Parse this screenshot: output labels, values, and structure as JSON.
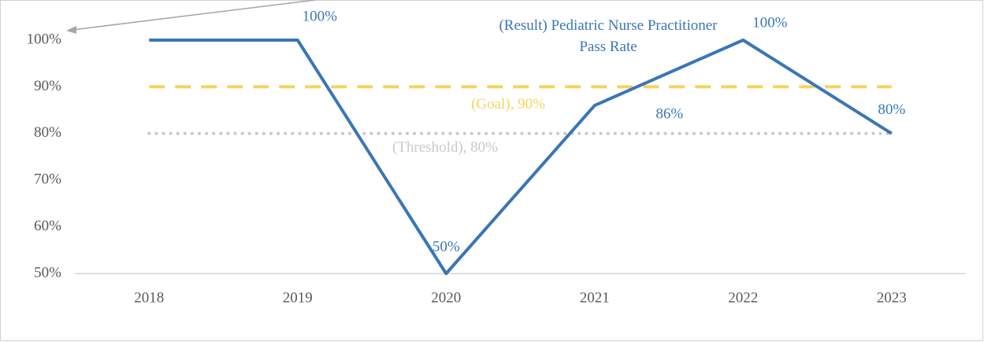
{
  "chart_data": {
    "type": "line",
    "categories": [
      "2018",
      "2019",
      "2020",
      "2021",
      "2022",
      "2023"
    ],
    "series": [
      {
        "label": "(Result) Pediatric Nurse Practitioner Pass Rate",
        "color": "#3a76b6",
        "style": "solid",
        "values": [
          100,
          100,
          50,
          86,
          100,
          80
        ],
        "value_labels": [
          null,
          "100%",
          "50%",
          "86%",
          "100%",
          "80%"
        ]
      },
      {
        "label": "(Goal), 90%",
        "color": "#f5d45e",
        "style": "dashed",
        "values": [
          90,
          90,
          90,
          90,
          90,
          90
        ]
      },
      {
        "label": "(Threshold), 80%",
        "color": "#c9c9c9",
        "style": "dotted",
        "values": [
          80,
          80,
          80,
          80,
          80,
          80
        ]
      }
    ],
    "ylim": [
      50,
      100
    ],
    "yticks": [
      {
        "value": 50,
        "label": "50%"
      },
      {
        "value": 60,
        "label": "60%"
      },
      {
        "value": 70,
        "label": "70%"
      },
      {
        "value": 80,
        "label": "80%"
      },
      {
        "value": 90,
        "label": "90%"
      },
      {
        "value": 100,
        "label": "100%"
      }
    ],
    "grid": false
  }
}
